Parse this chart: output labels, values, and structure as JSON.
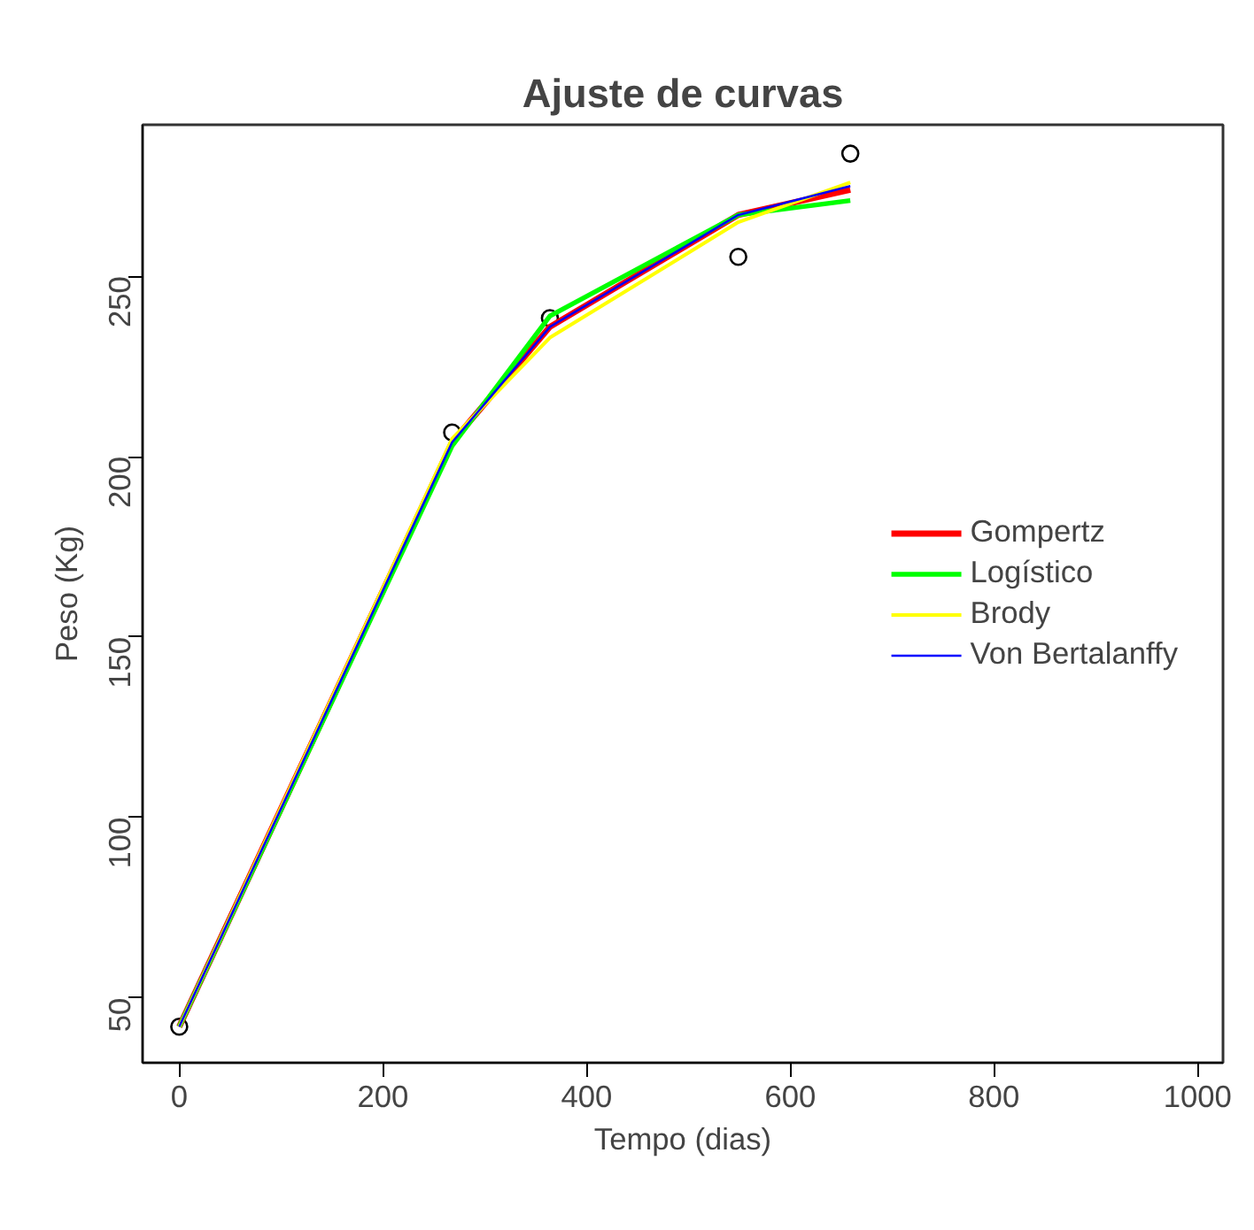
{
  "chart_data": {
    "type": "line",
    "title": "Ajuste de curvas",
    "xlabel": "Tempo (dias)",
    "ylabel": "Peso (Kg)",
    "x": [
      0,
      268,
      364,
      549,
      659
    ],
    "series": [
      {
        "type": "scatter",
        "color": "#000000",
        "marker": "circle",
        "values": [
          42,
          206.7,
          238.4,
          255.4,
          284
        ]
      },
      {
        "name": "Gompertz",
        "color": "#ff0000",
        "values": [
          42,
          204,
          236,
          267,
          274
        ]
      },
      {
        "name": "Logístico",
        "color": "#00ff00",
        "values": [
          42,
          203,
          239,
          267,
          271
        ]
      },
      {
        "name": "Brody",
        "color": "#ffff00",
        "values": [
          42,
          205,
          233,
          265,
          276
        ]
      },
      {
        "name": "Von Bertalanffy",
        "color": "#0000ff",
        "values": [
          42,
          204,
          236,
          267,
          275
        ]
      }
    ],
    "xlim": [
      -36,
      1025
    ],
    "ylim": [
      32,
      292
    ],
    "xticks": [
      0,
      200,
      400,
      600,
      800,
      1000
    ],
    "yticks": [
      50,
      100,
      150,
      200,
      250
    ],
    "grid": false,
    "legend": "right",
    "line_style": "solid"
  }
}
